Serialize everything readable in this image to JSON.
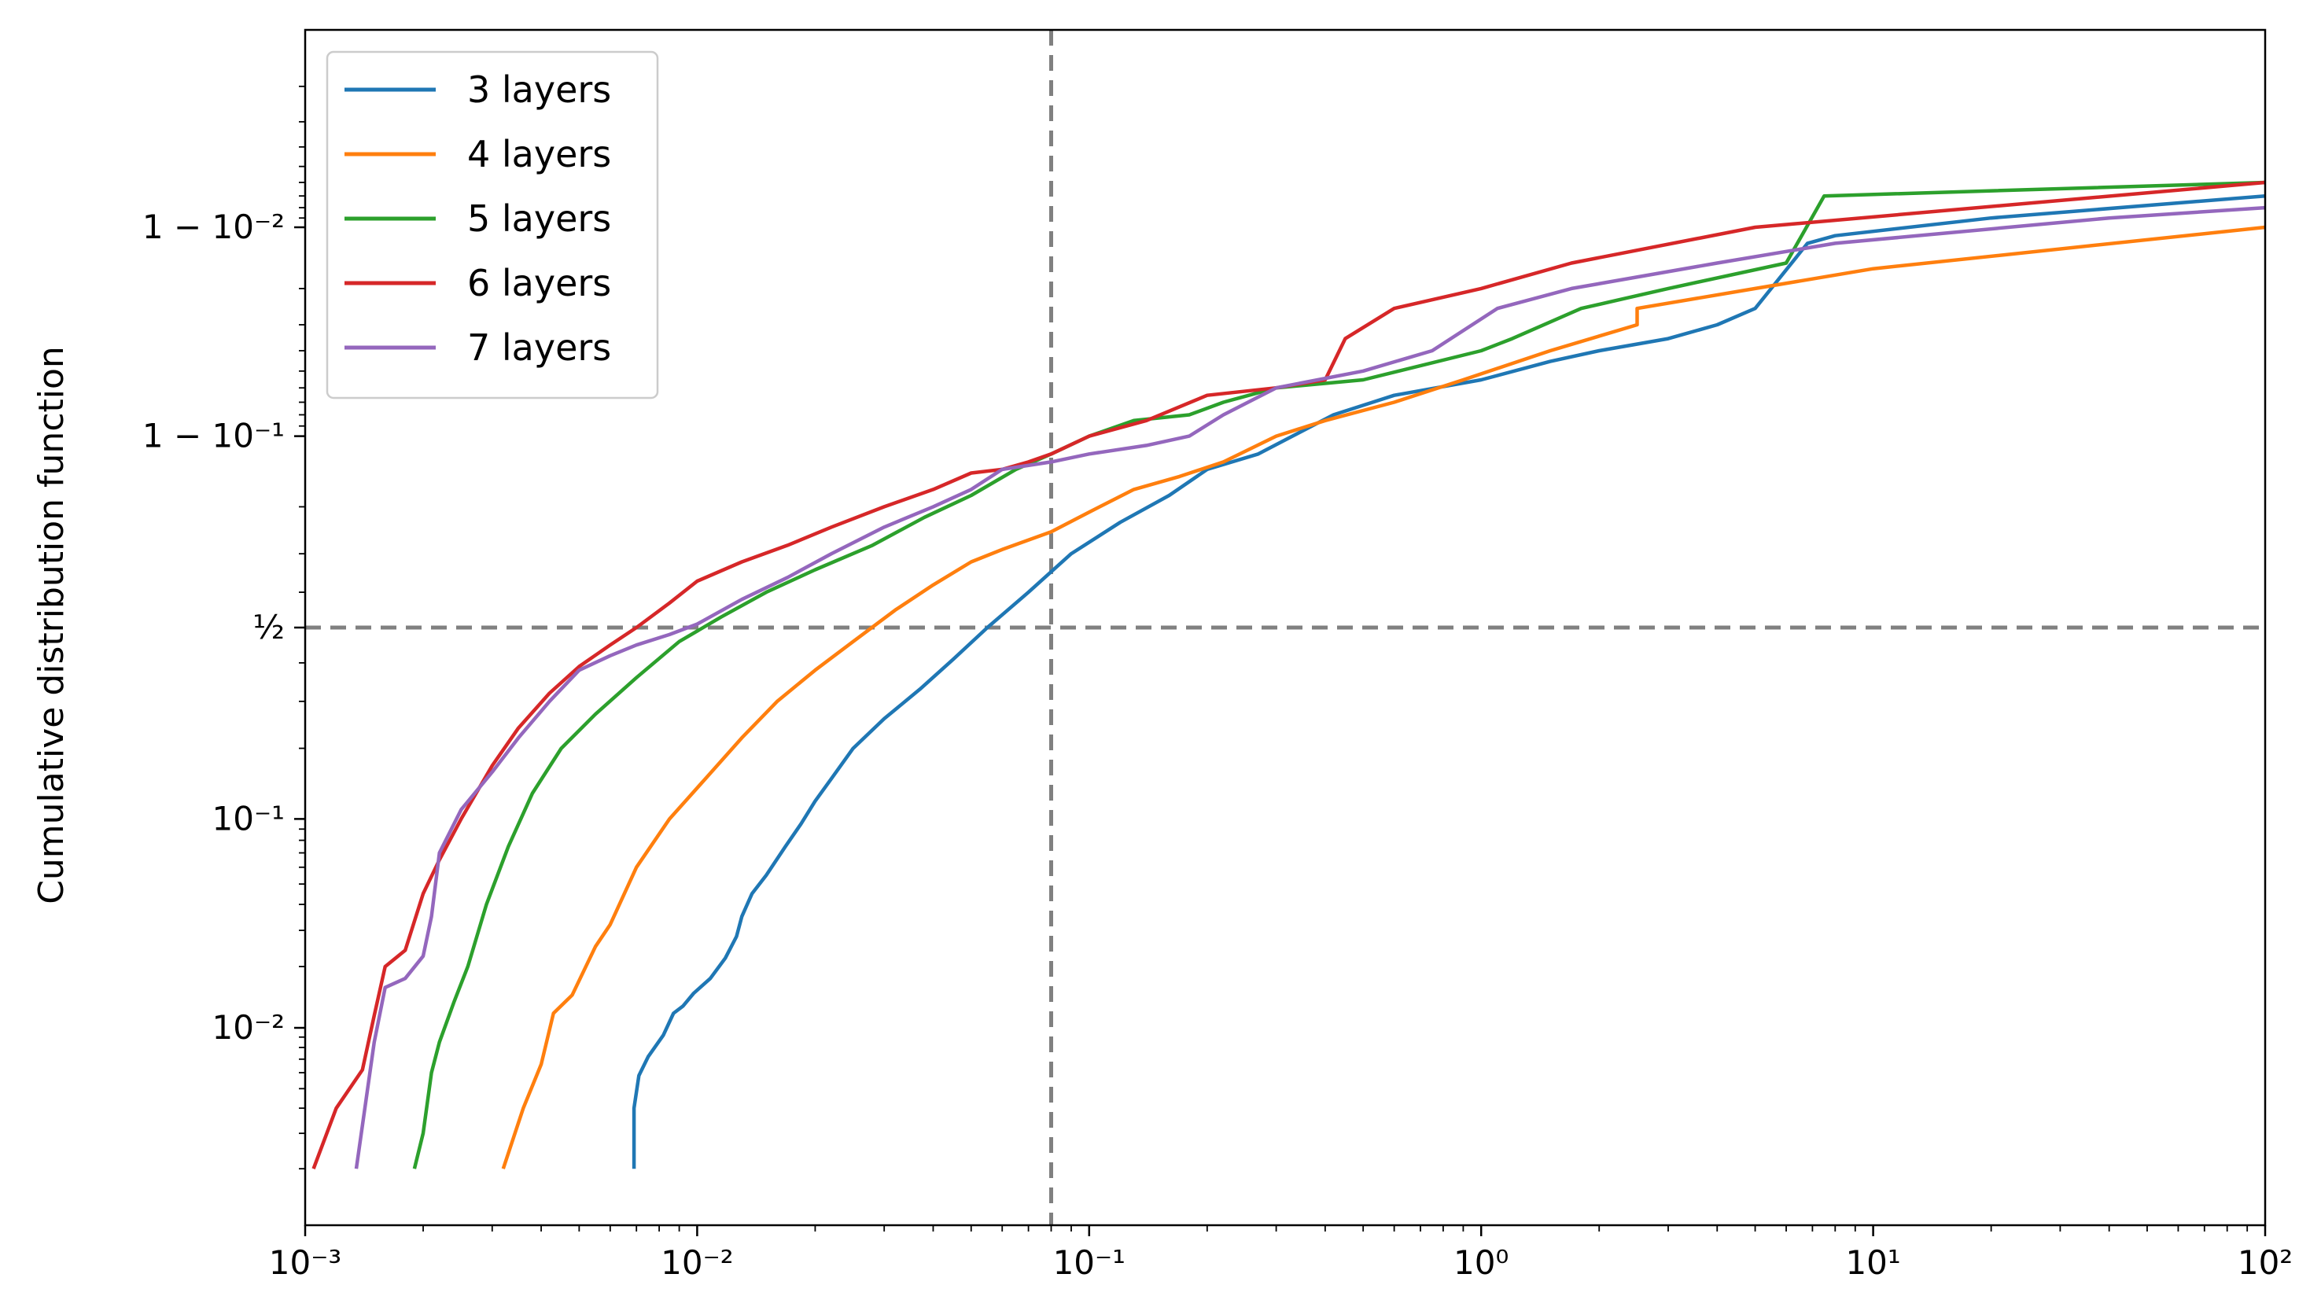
{
  "chart_data": {
    "type": "line",
    "title": "",
    "xlabel": "",
    "ylabel": "Cumulative distribution function",
    "xscale": "log",
    "yscale": "logit",
    "xlim": [
      0.001,
      100
    ],
    "x_ticks": [
      0.001,
      0.01,
      0.1,
      1,
      10,
      100
    ],
    "x_tick_labels": [
      "10⁻³",
      "10⁻²",
      "10⁻¹",
      "10⁰",
      "10¹",
      "10²"
    ],
    "y_ticks": [
      0.01,
      0.1,
      0.5,
      0.9,
      0.99
    ],
    "y_tick_labels": [
      "10⁻²",
      "10⁻¹",
      "½",
      "1 − 10⁻¹",
      "1 − 10⁻²"
    ],
    "grid": false,
    "legend_position": "top-left",
    "reference_lines": {
      "vertical_x": 0.08,
      "horizontal_y": 0.5,
      "style": "dashed",
      "color": "#808080"
    },
    "series": [
      {
        "name": "3 layers",
        "color": "#1f77b4",
        "x": [
          0.0069,
          0.0069,
          0.0071,
          0.0075,
          0.0082,
          0.0087,
          0.0092,
          0.0098,
          0.0108,
          0.0118,
          0.0126,
          0.013,
          0.0138,
          0.015,
          0.0168,
          0.0184,
          0.02,
          0.022,
          0.025,
          0.03,
          0.037,
          0.045,
          0.055,
          0.07,
          0.09,
          0.12,
          0.16,
          0.2,
          0.27,
          0.33,
          0.42,
          0.6,
          1.0,
          1.5,
          2.0,
          3.0,
          4.0,
          5.0,
          6.8,
          8.0,
          20.0,
          100.0
        ],
        "y": [
          0.002,
          0.004,
          0.0058,
          0.0072,
          0.0092,
          0.0118,
          0.0128,
          0.0148,
          0.0175,
          0.022,
          0.028,
          0.035,
          0.045,
          0.055,
          0.075,
          0.095,
          0.12,
          0.15,
          0.2,
          0.26,
          0.33,
          0.41,
          0.5,
          0.6,
          0.7,
          0.77,
          0.82,
          0.86,
          0.88,
          0.9,
          0.92,
          0.935,
          0.945,
          0.955,
          0.96,
          0.965,
          0.97,
          0.975,
          0.988,
          0.989,
          0.991,
          0.993
        ]
      },
      {
        "name": "4 layers",
        "color": "#ff7f0e",
        "x": [
          0.0032,
          0.0036,
          0.004,
          0.0043,
          0.0048,
          0.0055,
          0.006,
          0.007,
          0.0085,
          0.0105,
          0.013,
          0.016,
          0.02,
          0.025,
          0.032,
          0.04,
          0.05,
          0.06,
          0.08,
          0.1,
          0.13,
          0.17,
          0.22,
          0.3,
          0.4,
          0.6,
          0.9,
          1.5,
          2.5,
          2.5,
          5.0,
          10.0,
          100.0
        ],
        "y": [
          0.002,
          0.004,
          0.0066,
          0.0118,
          0.0145,
          0.025,
          0.032,
          0.06,
          0.1,
          0.15,
          0.22,
          0.3,
          0.38,
          0.46,
          0.55,
          0.62,
          0.68,
          0.71,
          0.75,
          0.79,
          0.83,
          0.85,
          0.87,
          0.9,
          0.915,
          0.93,
          0.945,
          0.96,
          0.97,
          0.975,
          0.98,
          0.984,
          0.99
        ]
      },
      {
        "name": "5 layers",
        "color": "#2ca02c",
        "x": [
          0.0019,
          0.002,
          0.0021,
          0.0022,
          0.0024,
          0.0026,
          0.0029,
          0.0033,
          0.0038,
          0.0045,
          0.0055,
          0.007,
          0.009,
          0.0115,
          0.015,
          0.02,
          0.028,
          0.038,
          0.05,
          0.065,
          0.08,
          0.1,
          0.13,
          0.18,
          0.22,
          0.3,
          0.5,
          1.0,
          1.2,
          1.8,
          3.0,
          6.0,
          7.5,
          100.0
        ],
        "y": [
          0.002,
          0.003,
          0.006,
          0.0085,
          0.0135,
          0.02,
          0.04,
          0.075,
          0.13,
          0.2,
          0.27,
          0.36,
          0.46,
          0.53,
          0.6,
          0.66,
          0.72,
          0.78,
          0.82,
          0.86,
          0.88,
          0.9,
          0.915,
          0.92,
          0.93,
          0.94,
          0.945,
          0.96,
          0.965,
          0.975,
          0.98,
          0.985,
          0.993,
          0.994
        ]
      },
      {
        "name": "6 layers",
        "color": "#d62728",
        "x": [
          0.00105,
          0.0012,
          0.0014,
          0.0015,
          0.0016,
          0.0018,
          0.002,
          0.0022,
          0.0025,
          0.003,
          0.0035,
          0.0042,
          0.005,
          0.006,
          0.007,
          0.0085,
          0.01,
          0.013,
          0.017,
          0.022,
          0.03,
          0.04,
          0.05,
          0.06,
          0.07,
          0.08,
          0.1,
          0.14,
          0.2,
          0.3,
          0.4,
          0.45,
          0.6,
          1.0,
          1.7,
          5.0,
          100.0
        ],
        "y": [
          0.002,
          0.004,
          0.0062,
          0.0115,
          0.02,
          0.024,
          0.045,
          0.065,
          0.1,
          0.17,
          0.24,
          0.32,
          0.39,
          0.45,
          0.5,
          0.57,
          0.63,
          0.68,
          0.72,
          0.76,
          0.8,
          0.83,
          0.855,
          0.86,
          0.87,
          0.88,
          0.9,
          0.915,
          0.935,
          0.94,
          0.945,
          0.965,
          0.975,
          0.98,
          0.985,
          0.99,
          0.994
        ]
      },
      {
        "name": "7 layers",
        "color": "#9467bd",
        "x": [
          0.00135,
          0.0015,
          0.0016,
          0.0018,
          0.002,
          0.0021,
          0.0022,
          0.0025,
          0.003,
          0.0035,
          0.0042,
          0.005,
          0.006,
          0.007,
          0.0085,
          0.01,
          0.013,
          0.017,
          0.022,
          0.03,
          0.04,
          0.05,
          0.06,
          0.08,
          0.1,
          0.14,
          0.18,
          0.22,
          0.3,
          0.5,
          0.75,
          1.1,
          1.7,
          4.0,
          8.0,
          40.0,
          100.0
        ],
        "y": [
          0.002,
          0.0085,
          0.0158,
          0.0175,
          0.0225,
          0.035,
          0.07,
          0.11,
          0.16,
          0.22,
          0.3,
          0.38,
          0.42,
          0.45,
          0.48,
          0.51,
          0.58,
          0.64,
          0.7,
          0.76,
          0.8,
          0.83,
          0.86,
          0.87,
          0.88,
          0.89,
          0.9,
          0.92,
          0.94,
          0.95,
          0.96,
          0.975,
          0.98,
          0.985,
          0.988,
          0.991,
          0.992
        ]
      }
    ]
  }
}
